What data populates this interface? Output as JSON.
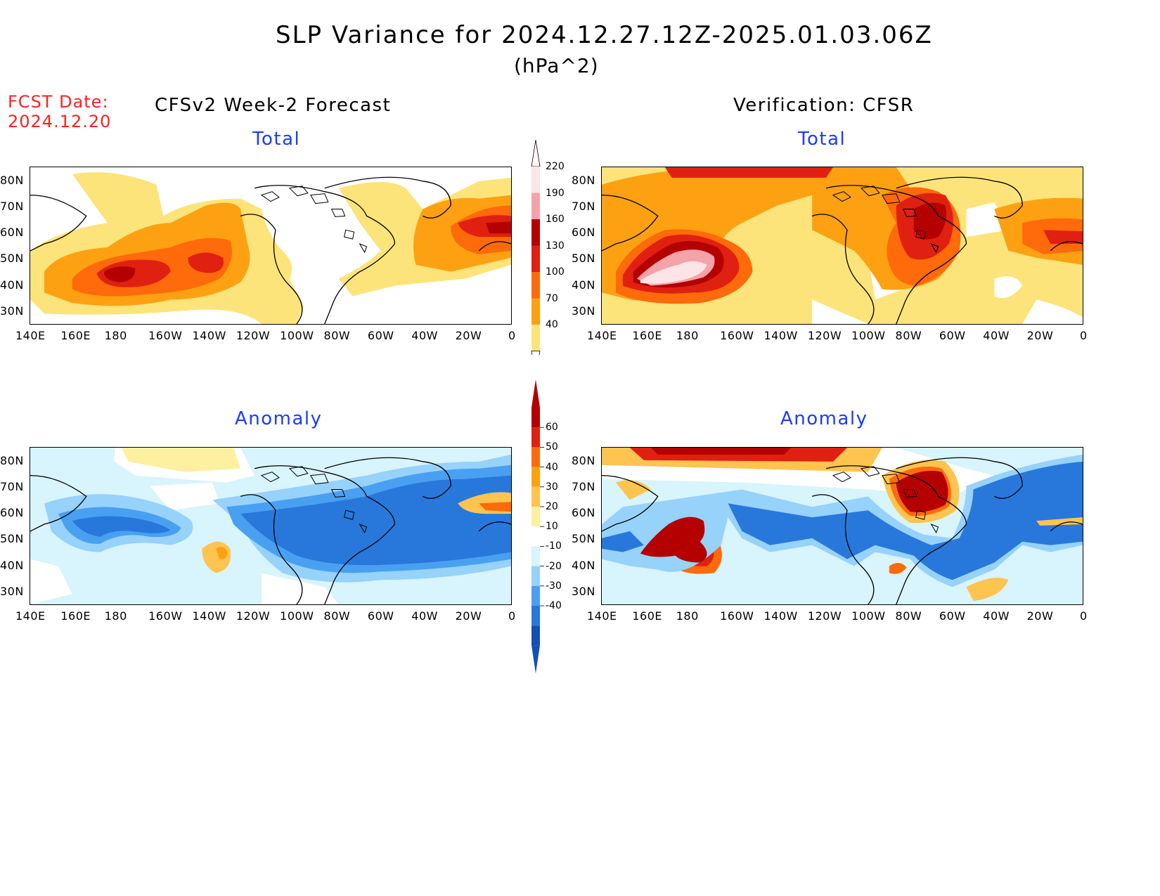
{
  "title": "SLP Variance for 2024.12.27.12Z-2025.01.03.06Z",
  "units": "(hPa^2)",
  "fcst_label": "FCST Date:",
  "fcst_date": "2024.12.20",
  "left_header": "CFSv2 Week-2 Forecast",
  "right_header": "Verification: CFSR",
  "panels": {
    "top_left": {
      "title": "Total"
    },
    "top_right": {
      "title": "Total"
    },
    "bottom_left": {
      "title": "Anomaly"
    },
    "bottom_right": {
      "title": "Anomaly"
    }
  },
  "lon_ticks": [
    "140E",
    "160E",
    "180",
    "160W",
    "140W",
    "120W",
    "100W",
    "80W",
    "60W",
    "40W",
    "20W",
    "0"
  ],
  "lat_ticks": [
    "80N",
    "70N",
    "60N",
    "50N",
    "40N",
    "30N"
  ],
  "colorbar_total": {
    "levels": [
      "220",
      "190",
      "160",
      "130",
      "100",
      "70",
      "40"
    ],
    "colors": [
      "#fde4e6",
      "#f4a3a8",
      "#b40000",
      "#e02010",
      "#ff6a0a",
      "#fda112",
      "#fde47a"
    ]
  },
  "colorbar_anomaly": {
    "levels": [
      "60",
      "50",
      "40",
      "30",
      "20",
      "10",
      "-10",
      "-20",
      "-30",
      "-40"
    ],
    "colors": [
      "#b40000",
      "#e02010",
      "#ff6a0a",
      "#fda112",
      "#fdc450",
      "#fdf0a0",
      "#ffffff",
      "#d8f4fc",
      "#96d2fa",
      "#4aa0f0",
      "#2878dc",
      "#1450b4"
    ]
  },
  "chart_data": {
    "type": "heatmap",
    "title": "SLP Variance for 2024.12.27.12Z-2025.01.03.06Z",
    "units": "(hPa^2)",
    "lon_range": [
      "140E",
      "0"
    ],
    "lat_range": [
      "25N",
      "85N"
    ],
    "panels": [
      {
        "name": "CFSv2 Week-2 Forecast Total",
        "levels": [
          40,
          70,
          100,
          130,
          160,
          190,
          220
        ]
      },
      {
        "name": "Verification: CFSR Total",
        "levels": [
          40,
          70,
          100,
          130,
          160,
          190,
          220
        ]
      },
      {
        "name": "CFSv2 Week-2 Forecast Anomaly",
        "levels": [
          -40,
          -30,
          -20,
          -10,
          10,
          20,
          30,
          40,
          50,
          60
        ]
      },
      {
        "name": "Verification: CFSR Anomaly",
        "levels": [
          -40,
          -30,
          -20,
          -10,
          10,
          20,
          30,
          40,
          50,
          60
        ]
      }
    ]
  }
}
